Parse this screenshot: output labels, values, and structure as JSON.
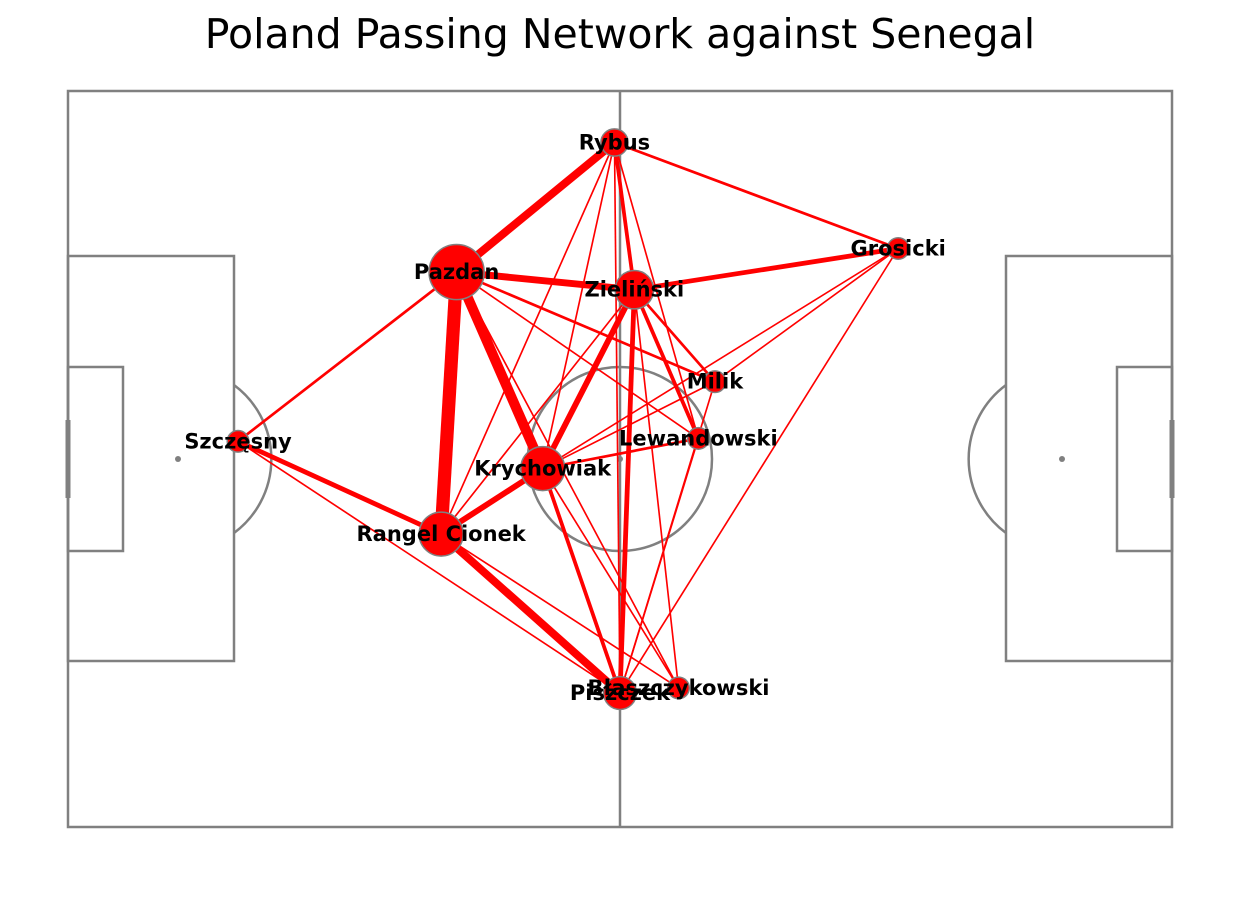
{
  "title": "Poland Passing Network against Senegal",
  "colors": {
    "node": "#ff0000",
    "edge": "#ff0000",
    "node_stroke": "#808080",
    "pitch_lines": "#808080"
  },
  "players": [
    {
      "id": "rybus",
      "name": "Rybus",
      "x": 49.5,
      "y": 93.0,
      "size": 2
    },
    {
      "id": "grosicki",
      "name": "Grosicki",
      "x": 75.2,
      "y": 78.6,
      "size": 1
    },
    {
      "id": "pazdan",
      "name": "Pazdan",
      "x": 35.2,
      "y": 75.4,
      "size": 7
    },
    {
      "id": "zielinski",
      "name": "Zieliński",
      "x": 51.3,
      "y": 73.0,
      "size": 4
    },
    {
      "id": "milik",
      "name": "Milik",
      "x": 58.6,
      "y": 60.5,
      "size": 1
    },
    {
      "id": "szczesny",
      "name": "Szczęsny",
      "x": 15.4,
      "y": 52.4,
      "size": 1
    },
    {
      "id": "lewandowski",
      "name": "Lewandowski",
      "x": 57.1,
      "y": 52.8,
      "size": 1
    },
    {
      "id": "krychowiak",
      "name": "Krychowiak",
      "x": 43.0,
      "y": 48.7,
      "size": 5
    },
    {
      "id": "cionek",
      "name": "Rangel Cionek",
      "x": 33.8,
      "y": 39.8,
      "size": 5
    },
    {
      "id": "piszczek",
      "name": "Piszczek",
      "x": 50.0,
      "y": 18.2,
      "size": 3
    },
    {
      "id": "blaszczykowski",
      "name": "Błaszczykowski",
      "x": 55.3,
      "y": 18.9,
      "size": 1
    }
  ],
  "passes": [
    [
      "pazdan",
      "cionek",
      12
    ],
    [
      "pazdan",
      "krychowiak",
      9
    ],
    [
      "rybus",
      "pazdan",
      7
    ],
    [
      "cionek",
      "piszczek",
      7
    ],
    [
      "pazdan",
      "zielinski",
      6
    ],
    [
      "krychowiak",
      "zielinski",
      5
    ],
    [
      "cionek",
      "szczesny",
      4
    ],
    [
      "cionek",
      "krychowiak",
      5
    ],
    [
      "zielinski",
      "grosicki",
      4
    ],
    [
      "zielinski",
      "piszczek",
      4
    ],
    [
      "krychowiak",
      "piszczek",
      3
    ],
    [
      "rybus",
      "zielinski",
      3
    ],
    [
      "zielinski",
      "lewandowski",
      3
    ],
    [
      "pazdan",
      "milik",
      2
    ],
    [
      "pazdan",
      "szczesny",
      2
    ],
    [
      "rybus",
      "grosicki",
      2
    ],
    [
      "krychowiak",
      "lewandowski",
      2
    ],
    [
      "zielinski",
      "milik",
      2
    ],
    [
      "krychowiak",
      "milik",
      1
    ],
    [
      "krychowiak",
      "blaszczykowski",
      1
    ],
    [
      "cionek",
      "blaszczykowski",
      1
    ],
    [
      "rybus",
      "krychowiak",
      1
    ],
    [
      "rybus",
      "cionek",
      1
    ],
    [
      "rybus",
      "piszczek",
      1
    ],
    [
      "rybus",
      "lewandowski",
      1
    ],
    [
      "grosicki",
      "krychowiak",
      1
    ],
    [
      "grosicki",
      "milik",
      1
    ],
    [
      "grosicki",
      "piszczek",
      1
    ],
    [
      "pazdan",
      "lewandowski",
      1
    ],
    [
      "zielinski",
      "blaszczykowski",
      1
    ],
    [
      "lewandowski",
      "piszczek",
      1
    ],
    [
      "milik",
      "piszczek",
      1
    ],
    [
      "szczesny",
      "piszczek",
      1
    ],
    [
      "cionek",
      "zielinski",
      1
    ],
    [
      "pazdan",
      "blaszczykowski",
      1
    ]
  ]
}
